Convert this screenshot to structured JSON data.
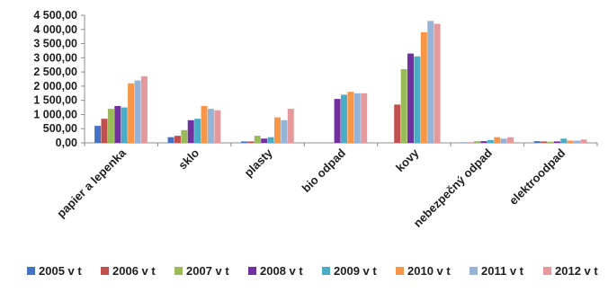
{
  "chart_data": {
    "type": "bar",
    "categories": [
      "papier a lepenka",
      "sklo",
      "plasty",
      "bio odpad",
      "kovy",
      "nebezpečný odpad",
      "elektroodpad"
    ],
    "series": [
      {
        "name": "2005 v t",
        "color": "#4472C4",
        "values": [
          600,
          200,
          50,
          0,
          0,
          10,
          60
        ]
      },
      {
        "name": "2006 v t",
        "color": "#C0504D",
        "values": [
          850,
          250,
          50,
          0,
          1350,
          10,
          50
        ]
      },
      {
        "name": "2007 v t",
        "color": "#9BBB59",
        "values": [
          1200,
          450,
          250,
          0,
          2600,
          60,
          40
        ]
      },
      {
        "name": "2008 v t",
        "color": "#7030A0",
        "values": [
          1300,
          800,
          150,
          1550,
          3150,
          60,
          50
        ]
      },
      {
        "name": "2009 v t",
        "color": "#4BACC6",
        "values": [
          1250,
          850,
          200,
          1700,
          3050,
          100,
          150
        ]
      },
      {
        "name": "2010 v t",
        "color": "#F79646",
        "values": [
          2100,
          1300,
          900,
          1800,
          3900,
          200,
          80
        ]
      },
      {
        "name": "2011 v t",
        "color": "#95B3D7",
        "values": [
          2200,
          1200,
          800,
          1750,
          4300,
          150,
          80
        ]
      },
      {
        "name": "2012 v t",
        "color": "#E6999C",
        "values": [
          2350,
          1150,
          1200,
          1750,
          4200,
          200,
          120
        ]
      }
    ],
    "y_ticks": [
      "0,00",
      "500,00",
      "1 000,00",
      "1 500,00",
      "2 000,00",
      "2 500,00",
      "3 000,00",
      "3 500,00",
      "4 000,00",
      "4 500,00"
    ],
    "ylim": [
      0,
      4500
    ],
    "grid": false,
    "legend_position": "bottom"
  }
}
